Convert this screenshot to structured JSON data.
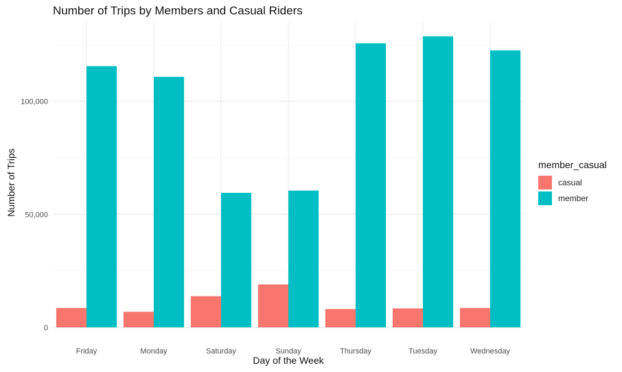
{
  "title": "Number of Trips by Members and Casual Riders",
  "xlabel": "Day of the Week",
  "ylabel": "Number of Trips",
  "legend": {
    "title": "member_casual",
    "items": [
      {
        "label": "casual",
        "color": "#F8766D"
      },
      {
        "label": "member",
        "color": "#00BFC4"
      }
    ]
  },
  "chart_data": {
    "type": "bar",
    "title": "Number of Trips by Members and Casual Riders",
    "xlabel": "Day of the Week",
    "ylabel": "Number of Trips",
    "categories": [
      "Friday",
      "Monday",
      "Saturday",
      "Sunday",
      "Thursday",
      "Tuesday",
      "Wednesday"
    ],
    "series": [
      {
        "name": "casual",
        "color": "#F8766D",
        "values": [
          8600,
          6900,
          13800,
          19000,
          8100,
          8400,
          8600
        ]
      },
      {
        "name": "member",
        "color": "#00BFC4",
        "values": [
          115500,
          110800,
          59500,
          60500,
          125600,
          128700,
          122500
        ]
      }
    ],
    "ylim": [
      0,
      135000
    ],
    "yticks": [
      0,
      50000,
      100000
    ],
    "ytick_labels": [
      "0",
      "50,000",
      "100,000"
    ],
    "grid": true,
    "legend_position": "right"
  }
}
